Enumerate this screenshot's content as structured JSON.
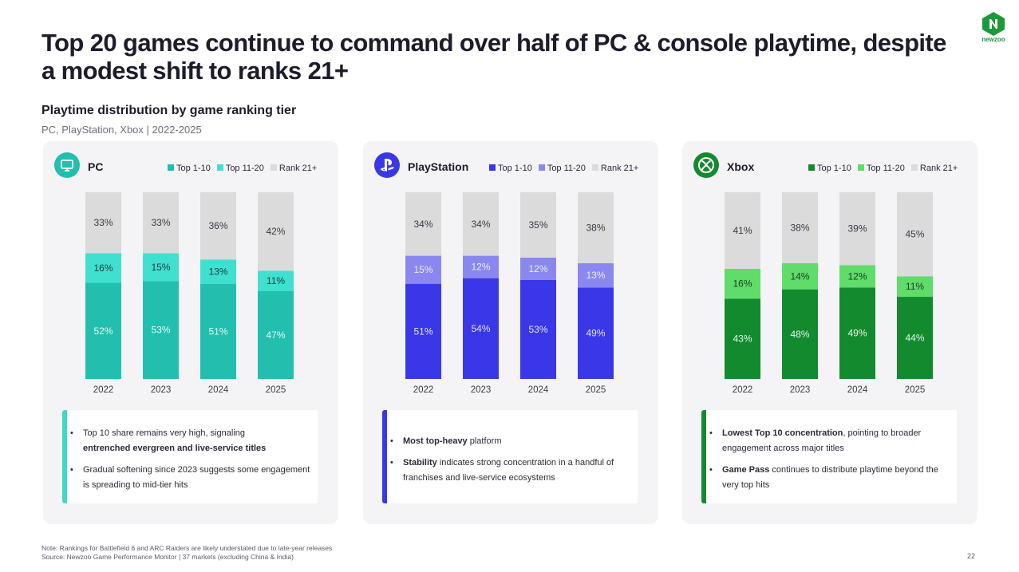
{
  "header": {
    "title": "Top 20 games continue to command over half of PC & console playtime, despite a modest shift to ranks 21+",
    "subtitle": "Playtime distribution by game ranking tier",
    "subsubtitle": "PC, PlayStation, Xbox | 2022-2025"
  },
  "logo": {
    "text": "newzoo",
    "icon": "newzoo-logo-icon",
    "color": "#1a9a3a"
  },
  "panels": [
    {
      "name": "PC",
      "icon": "monitor-icon",
      "icon_color": "#22bfae",
      "note_bar_color": "#3fd8c8",
      "notes": [
        {
          "pre": "Top 10 share remains very high, signaling",
          "bold": "entrenched evergreen and live-service titles",
          "post": ""
        },
        {
          "pre": "Gradual softening since 2023 suggests some engagement is spreading to mid-tier hits",
          "bold": "",
          "post": ""
        }
      ]
    },
    {
      "name": "PlayStation",
      "icon": "playstation-logo-icon",
      "icon_color": "#3a37e8",
      "note_bar_color": "#3a37e8",
      "notes": [
        {
          "pre": "",
          "bold": "Most top-heavy",
          "post": " platform"
        },
        {
          "pre": "",
          "bold": "Stability",
          "post": " indicates strong concentration in a handful of franchises and live-service ecosystems"
        }
      ]
    },
    {
      "name": "Xbox",
      "icon": "xbox-logo-icon",
      "icon_color": "#138a2e",
      "note_bar_color": "#138a2e",
      "notes": [
        {
          "pre": "",
          "bold": "Lowest Top 10 concentration",
          "post": ", pointing to broader engagement across major titles"
        },
        {
          "pre": "",
          "bold": "Game Pass",
          "post": " continues to distribute playtime beyond the very top hits"
        }
      ]
    }
  ],
  "chart_data": [
    {
      "type": "bar",
      "stacked": true,
      "title": "PC",
      "categories": [
        "2022",
        "2023",
        "2024",
        "2025"
      ],
      "series": [
        {
          "name": "Top 1-10",
          "values": [
            52,
            53,
            51,
            47
          ],
          "color": "#22bfae",
          "label_color": "#e8fbf8"
        },
        {
          "name": "Top 11-20",
          "values": [
            16,
            15,
            13,
            11
          ],
          "color": "#40e0d0",
          "label_color": "#1e3a38"
        },
        {
          "name": "Rank 21+",
          "values": [
            33,
            33,
            36,
            42
          ],
          "color": "#dbdbdb",
          "label_color": "#3a3a46"
        }
      ],
      "ylim": [
        0,
        100
      ],
      "legend": "top-right",
      "grid": false
    },
    {
      "type": "bar",
      "stacked": true,
      "title": "PlayStation",
      "categories": [
        "2022",
        "2023",
        "2024",
        "2025"
      ],
      "series": [
        {
          "name": "Top 1-10",
          "values": [
            51,
            54,
            53,
            49
          ],
          "color": "#3a37e8",
          "label_color": "#e6e6ff"
        },
        {
          "name": "Top 11-20",
          "values": [
            15,
            12,
            12,
            13
          ],
          "color": "#8a88f0",
          "label_color": "#ededff"
        },
        {
          "name": "Rank 21+",
          "values": [
            34,
            34,
            35,
            38
          ],
          "color": "#dbdbdb",
          "label_color": "#3a3a46"
        }
      ],
      "ylim": [
        0,
        100
      ],
      "legend": "top-right",
      "grid": false
    },
    {
      "type": "bar",
      "stacked": true,
      "title": "Xbox",
      "categories": [
        "2022",
        "2023",
        "2024",
        "2025"
      ],
      "series": [
        {
          "name": "Top 1-10",
          "values": [
            43,
            48,
            49,
            44
          ],
          "color": "#138a2e",
          "label_color": "#e4f7e8"
        },
        {
          "name": "Top 11-20",
          "values": [
            16,
            14,
            12,
            11
          ],
          "color": "#5fdc6a",
          "label_color": "#1e3a22"
        },
        {
          "name": "Rank 21+",
          "values": [
            41,
            38,
            39,
            45
          ],
          "color": "#dbdbdb",
          "label_color": "#3a3a46"
        }
      ],
      "ylim": [
        0,
        100
      ],
      "legend": "top-right",
      "grid": false
    }
  ],
  "footer": {
    "note": "Note: Rankings for Battlefield 6 and ARC Raiders are likely understated due to late-year releases",
    "source": "Source: Newzoo Game Performance Monitor | 37 markets (excluding China & India)",
    "page_number": "22"
  }
}
